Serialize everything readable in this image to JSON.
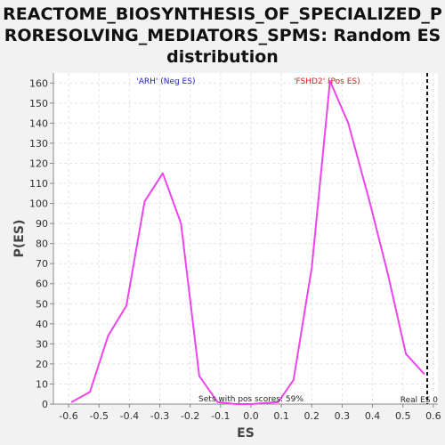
{
  "chart_data": {
    "type": "line",
    "title": "REACTOME_BIOSYNTHESIS_OF_SPECIALIZED_P\nRORESOLVING_MEDIATORS_SPMS: Random ES\ndistribution",
    "xlabel": "ES",
    "ylabel": "P(ES)",
    "xlim": [
      -0.65,
      0.615
    ],
    "ylim": [
      0,
      165
    ],
    "x_ticks": [
      -0.6,
      -0.5,
      -0.4,
      -0.3,
      -0.2,
      -0.1,
      0.0,
      0.1,
      0.2,
      0.3,
      0.4,
      0.5,
      0.6
    ],
    "x_tick_labels": [
      "-0.6",
      "-0.5",
      "-0.4",
      "-0.3",
      "-0.2",
      "-0.1",
      "0.0",
      "0.1",
      "0.2",
      "0.3",
      "0.4",
      "0.5",
      "0.6"
    ],
    "y_ticks": [
      0,
      10,
      20,
      30,
      40,
      50,
      60,
      70,
      80,
      90,
      100,
      110,
      120,
      130,
      140,
      150,
      160
    ],
    "y_tick_labels": [
      "0",
      "10",
      "20",
      "30",
      "40",
      "50",
      "60",
      "70",
      "80",
      "90",
      "100",
      "110",
      "120",
      "130",
      "140",
      "150",
      "160"
    ],
    "grid": true,
    "series": [
      {
        "color": "#ee44ee",
        "x": [
          -0.59,
          -0.53,
          -0.47,
          -0.41,
          -0.35,
          -0.29,
          -0.23,
          -0.17,
          -0.11,
          -0.05,
          0.0,
          0.09,
          0.14,
          0.2,
          0.26,
          0.32,
          0.39,
          0.45,
          0.51,
          0.57
        ],
        "y": [
          1,
          6,
          34,
          49,
          101,
          115,
          90,
          14,
          1,
          0,
          0,
          1,
          12,
          68,
          161,
          140,
          101,
          65,
          25,
          15
        ]
      }
    ],
    "annotations": {
      "neg_label": "'ARH' (Neg ES)",
      "neg_color": "#2222cc",
      "pos_label": "'FSHD2' (Pos ES)",
      "pos_color": "#cc2222",
      "sets_text": "Sets with pos scores: 59%",
      "real_es_label": "Real ES 0",
      "real_es_x": 0.58
    }
  }
}
